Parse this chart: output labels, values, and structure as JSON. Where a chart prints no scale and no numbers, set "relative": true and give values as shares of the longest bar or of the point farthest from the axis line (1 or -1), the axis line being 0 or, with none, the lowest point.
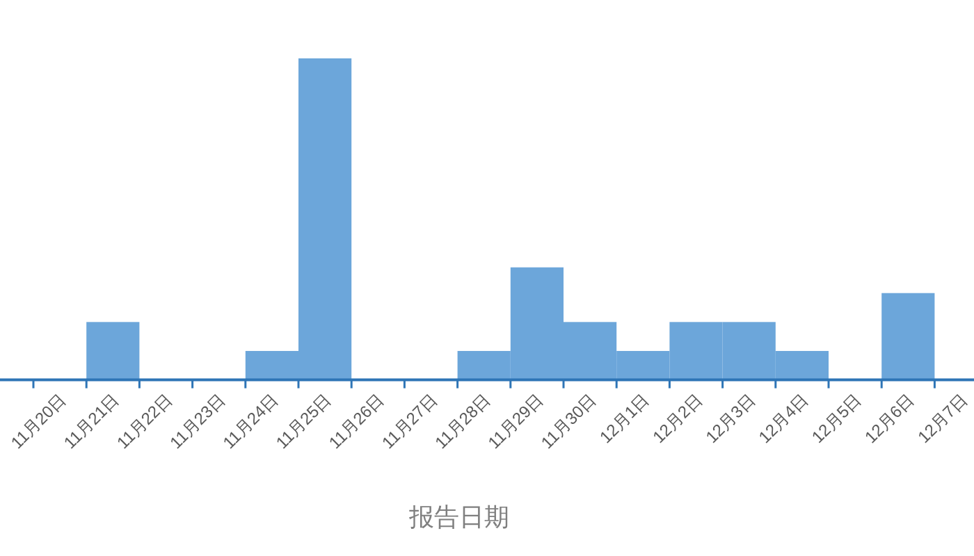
{
  "chart_data": {
    "type": "bar",
    "relative": true,
    "xlabel": "报告日期",
    "color": "#6ca6da",
    "categories": [
      "11月20日",
      "11月21日",
      "11月22日",
      "11月23日",
      "11月24日",
      "11月25日",
      "11月26日",
      "11月27日",
      "11月28日",
      "11月29日",
      "11月30日",
      "12月1日",
      "12月2日",
      "12月3日",
      "12月4日",
      "12月5日",
      "12月6日",
      "12月7日"
    ],
    "values": [
      0,
      0.18,
      0,
      0,
      0.09,
      1,
      0,
      0,
      0.09,
      0.35,
      0.18,
      0.09,
      0.18,
      0.18,
      0.09,
      0,
      0.27,
      0
    ]
  }
}
